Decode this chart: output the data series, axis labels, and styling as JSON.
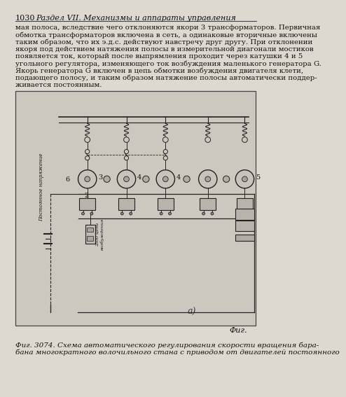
{
  "page_number": "1030",
  "header_title": "Раздел VII. Механизмы и аппараты управления",
  "body_text": [
    "мая полоса, вследствие чего отклоняются якори 3 трансформаторов. Первичная",
    "обмотка трансформаторов включена в сеть, а одинаковые вторичные включены",
    "таким образом, что их э.д.с. действуют навстречу друг другу. При отклонении",
    "якоря под действием натяжения полосы в измерительной диагонали мостиков",
    "появляется ток, который после выпрямления проходит через катушки 4 и 5",
    "угольного регулятора, изменяющего ток возбуждения маленького генератора G.",
    "Якорь генератора G включен в цепь обмотки возбуждения двигателя клети,",
    "подающего полосу, и таким образом натяжение полосы автоматически поддер-",
    "живается постоянным."
  ],
  "caption_line1": "Фиг. 3074. Схема автоматического регулирования скорости вращения бара-",
  "caption_line2": "бана многократного волочильного стана с приводом от двигателей постоянного",
  "fig_label_a": "а)",
  "fig_label": "Фиг.",
  "bg_color": "#ddd9d0",
  "text_color": "#111111",
  "diagram_bg": "#ccc8c0",
  "border_color": "#444444",
  "line_color": "#222222"
}
